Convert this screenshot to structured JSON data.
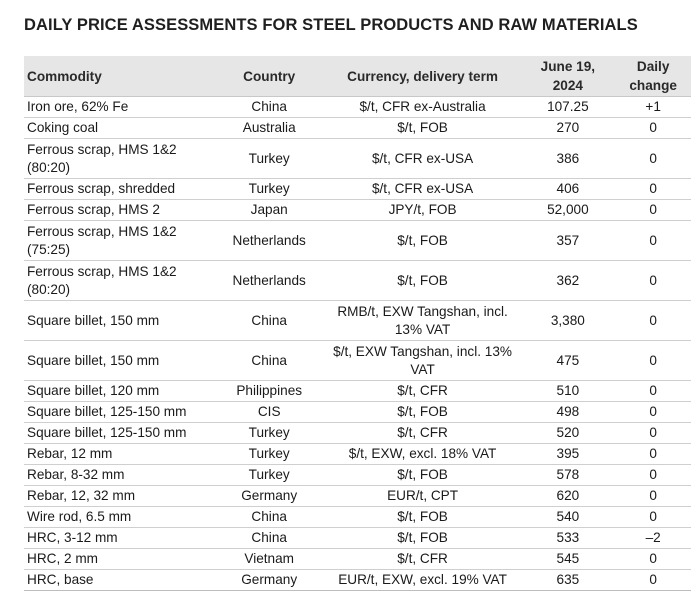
{
  "title": "DAILY PRICE ASSESSMENTS FOR STEEL PRODUCTS AND RAW MATERIALS",
  "columns": {
    "commodity": "Commodity",
    "country": "Country",
    "currency": "Currency, delivery term",
    "date_line1": "June 19,",
    "date_line2": "2024",
    "change_line1": "Daily",
    "change_line2": "change"
  },
  "rows": [
    {
      "commodity": "Iron ore, 62% Fe",
      "country": "China",
      "currency": "$/t, CFR ex-Australia",
      "price": "107.25",
      "change": "+1"
    },
    {
      "commodity": "Coking coal",
      "country": "Australia",
      "currency": "$/t, FOB",
      "price": "270",
      "change": "0"
    },
    {
      "commodity": "Ferrous scrap, HMS 1&2 (80:20)",
      "country": "Turkey",
      "currency": "$/t, CFR ex-USA",
      "price": "386",
      "change": "0"
    },
    {
      "commodity": "Ferrous scrap, shredded",
      "country": "Turkey",
      "currency": "$/t, CFR ex-USA",
      "price": "406",
      "change": "0"
    },
    {
      "commodity": "Ferrous scrap, HMS 2",
      "country": "Japan",
      "currency": "JPY/t, FOB",
      "price": "52,000",
      "change": "0"
    },
    {
      "commodity": "Ferrous scrap, HMS 1&2 (75:25)",
      "country": "Netherlands",
      "currency": "$/t, FOB",
      "price": "357",
      "change": "0"
    },
    {
      "commodity": "Ferrous scrap, HMS 1&2 (80:20)",
      "country": "Netherlands",
      "currency": "$/t, FOB",
      "price": "362",
      "change": "0"
    },
    {
      "commodity": "Square billet, 150 mm",
      "country": "China",
      "currency": "RMB/t, EXW Tangshan, incl. 13% VAT",
      "price": "3,380",
      "change": "0"
    },
    {
      "commodity": "Square billet, 150 mm",
      "country": "China",
      "currency": "$/t, EXW Tangshan, incl. 13% VAT",
      "price": "475",
      "change": "0"
    },
    {
      "commodity": "Square billet, 120 mm",
      "country": "Philippines",
      "currency": "$/t, CFR",
      "price": "510",
      "change": "0"
    },
    {
      "commodity": "Square billet, 125-150 mm",
      "country": "CIS",
      "currency": "$/t, FOB",
      "price": "498",
      "change": "0"
    },
    {
      "commodity": "Square billet, 125-150 mm",
      "country": "Turkey",
      "currency": "$/t, CFR",
      "price": "520",
      "change": "0"
    },
    {
      "commodity": "Rebar, 12 mm",
      "country": "Turkey",
      "currency": "$/t, EXW, excl. 18% VAT",
      "price": "395",
      "change": "0"
    },
    {
      "commodity": "Rebar, 8-32 mm",
      "country": "Turkey",
      "currency": "$/t, FOB",
      "price": "578",
      "change": "0"
    },
    {
      "commodity": "Rebar, 12, 32 mm",
      "country": "Germany",
      "currency": "EUR/t, CPT",
      "price": "620",
      "change": "0"
    },
    {
      "commodity": "Wire rod, 6.5 mm",
      "country": "China",
      "currency": "$/t, FOB",
      "price": "540",
      "change": "0"
    },
    {
      "commodity": "HRC, 3-12 mm",
      "country": "China",
      "currency": "$/t, FOB",
      "price": "533",
      "change": "–2"
    },
    {
      "commodity": "HRC, 2 mm",
      "country": "Vietnam",
      "currency": "$/t, CFR",
      "price": "545",
      "change": "0"
    },
    {
      "commodity": "HRC, base",
      "country": "Germany",
      "currency": "EUR/t, EXW, excl. 19% VAT",
      "price": "635",
      "change": "0"
    }
  ]
}
